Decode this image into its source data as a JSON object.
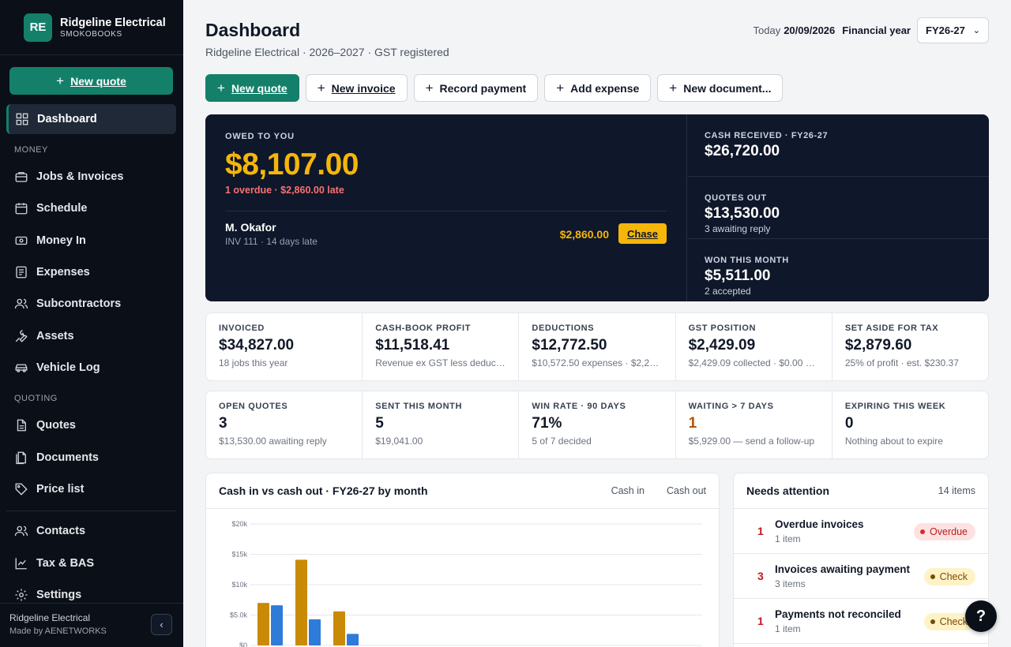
{
  "brand": {
    "initials": "RE",
    "name": "Ridgeline Electrical",
    "product": "SMOKOBOOKS"
  },
  "sidebar": {
    "cta": "New quote",
    "items": [
      {
        "label": "Dashboard",
        "icon": "grid-icon"
      },
      {
        "label": "Jobs & Invoices",
        "icon": "briefcase-icon"
      },
      {
        "label": "Schedule",
        "icon": "calendar-icon"
      },
      {
        "label": "Money In",
        "icon": "banknote-icon"
      },
      {
        "label": "Expenses",
        "icon": "receipt-icon"
      },
      {
        "label": "Subcontractors",
        "icon": "users-icon"
      },
      {
        "label": "Assets",
        "icon": "wrench-icon"
      },
      {
        "label": "Vehicle Log",
        "icon": "car-icon"
      },
      {
        "label": "Quotes",
        "icon": "file-icon"
      },
      {
        "label": "Documents",
        "icon": "documents-icon"
      },
      {
        "label": "Price list",
        "icon": "tag-icon"
      },
      {
        "label": "Contacts",
        "icon": "contacts-icon"
      },
      {
        "label": "Tax & BAS",
        "icon": "chart-icon"
      },
      {
        "label": "Settings",
        "icon": "gear-icon"
      }
    ],
    "sections": {
      "money": "MONEY",
      "quoting": "QUOTING"
    },
    "footer": {
      "org": "Ridgeline Electrical",
      "made_by": "Made by AENETWORKS",
      "collapse": "‹"
    }
  },
  "header": {
    "title": "Dashboard",
    "subtitle": "Ridgeline Electrical · 2026–2027 · GST registered",
    "today_label": "Today",
    "today_value": "20/09/2026",
    "fy_label": "Financial year",
    "fy_value": "FY26-27"
  },
  "actions": {
    "new_quote": "New quote",
    "new_invoice": "New invoice",
    "record_payment": "Record payment",
    "add_expense": "Add expense",
    "new_document": "New document..."
  },
  "hero": {
    "owed_label": "OWED TO YOU",
    "owed_amount": "$8,107.00",
    "overdue_line": "1 overdue · $2,860.00 late",
    "debtor": {
      "name": "M. Okafor",
      "detail": "INV 111 · 14 days late",
      "amount": "$2,860.00",
      "action": "Chase"
    },
    "cells": [
      {
        "label": "CASH RECEIVED · FY26-27",
        "value": "$26,720.00",
        "sub": ""
      },
      {
        "label": "QUOTES OUT",
        "value": "$13,530.00",
        "sub": "3 awaiting reply"
      },
      {
        "label": "WON THIS MONTH",
        "value": "$5,511.00",
        "sub": "2 accepted"
      }
    ]
  },
  "stats1": [
    {
      "label": "INVOICED",
      "value": "$34,827.00",
      "sub": "18 jobs this year"
    },
    {
      "label": "CASH-BOOK PROFIT",
      "value": "$11,518.41",
      "sub": "Revenue ex GST less deducti..."
    },
    {
      "label": "DEDUCTIONS",
      "value": "$12,772.50",
      "sub": "$10,572.50 expenses · $2,200...."
    },
    {
      "label": "GST POSITION",
      "value": "$2,429.09",
      "sub": "$2,429.09 collected · $0.00 cr..."
    },
    {
      "label": "SET ASIDE FOR TAX",
      "value": "$2,879.60",
      "sub": "25% of profit · est. $230.37"
    }
  ],
  "stats2": [
    {
      "label": "OPEN QUOTES",
      "value": "3",
      "sub": "$13,530.00 awaiting reply"
    },
    {
      "label": "SENT THIS MONTH",
      "value": "5",
      "sub": "$19,041.00"
    },
    {
      "label": "WIN RATE · 90 DAYS",
      "value": "71%",
      "sub": "5 of 7 decided"
    },
    {
      "label": "WAITING > 7 DAYS",
      "value": "1",
      "sub": "$5,929.00 — send a follow-up"
    },
    {
      "label": "EXPIRING THIS WEEK",
      "value": "0",
      "sub": "Nothing about to expire"
    }
  ],
  "chart_card": {
    "title": "Cash in vs cash out · FY26-27 by month",
    "legend_in": "Cash in",
    "legend_out": "Cash out"
  },
  "chart_data": {
    "type": "bar",
    "title": "Cash in vs cash out · FY26-27 by month",
    "yticks": [
      "$20k",
      "$15k",
      "$10k",
      "$5.0k",
      "$0"
    ],
    "ylim": [
      0,
      20000
    ],
    "grid": true,
    "legend_position": "top-right",
    "series": [
      {
        "name": "Cash in",
        "color": "#c98a06",
        "values": [
          7000,
          14100,
          5600
        ]
      },
      {
        "name": "Cash out",
        "color": "#2f7bd9",
        "values": [
          6600,
          4300,
          1900
        ]
      }
    ]
  },
  "attention": {
    "title": "Needs attention",
    "count": "14 items",
    "items": [
      {
        "num": "1",
        "label": "Overdue invoices",
        "sub": "1 item",
        "pill": "Overdue",
        "kind": "overdue"
      },
      {
        "num": "3",
        "label": "Invoices awaiting payment",
        "sub": "3 items",
        "pill": "Check",
        "kind": "check"
      },
      {
        "num": "1",
        "label": "Payments not reconciled",
        "sub": "1 item",
        "pill": "Check",
        "kind": "check"
      }
    ]
  },
  "help": "?"
}
